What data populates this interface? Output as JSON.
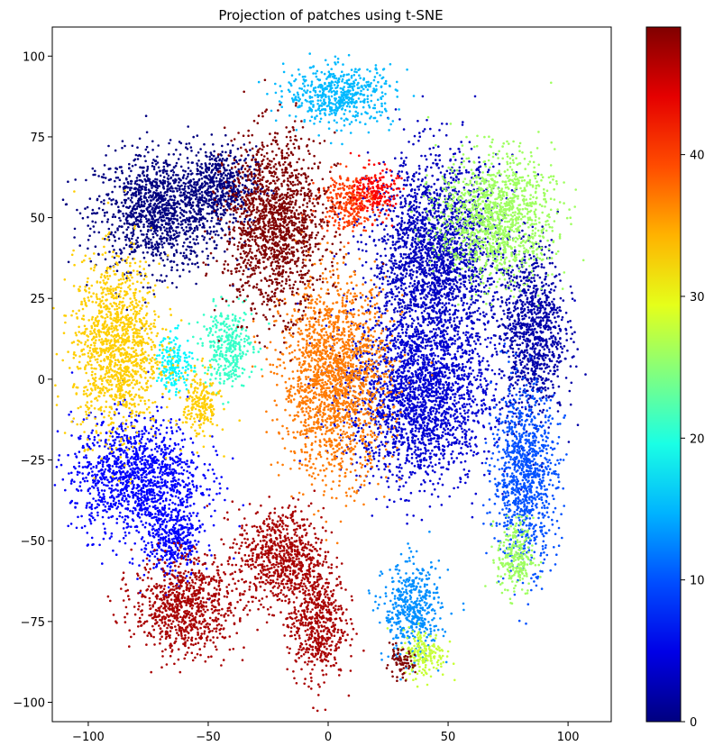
{
  "chart_data": {
    "type": "scatter",
    "title": "Projection of patches using t-SNE",
    "xlabel": "",
    "ylabel": "",
    "xlim": [
      -115,
      118
    ],
    "ylim": [
      -106,
      109
    ],
    "x_ticks": [
      -100,
      -50,
      0,
      50,
      100
    ],
    "y_ticks": [
      -100,
      -75,
      -50,
      -25,
      0,
      25,
      50,
      75,
      100
    ],
    "grid": false,
    "colormap": "jet",
    "color_range": [
      0,
      49
    ],
    "colorbar_ticks": [
      0,
      10,
      20,
      30,
      40
    ],
    "clusters": [
      {
        "label": 0,
        "x": -70,
        "y": 52,
        "sx": 18,
        "sy": 12
      },
      {
        "label": 0,
        "x": -45,
        "y": 60,
        "sx": 10,
        "sy": 8
      },
      {
        "label": 2,
        "x": 85,
        "y": 15,
        "sx": 9,
        "sy": 18
      },
      {
        "label": 3,
        "x": 45,
        "y": 38,
        "sx": 18,
        "sy": 20
      },
      {
        "label": 4,
        "x": 38,
        "y": -5,
        "sx": 20,
        "sy": 18
      },
      {
        "label": 6,
        "x": -80,
        "y": -30,
        "sx": 18,
        "sy": 12
      },
      {
        "label": 6,
        "x": -65,
        "y": -50,
        "sx": 8,
        "sy": 8
      },
      {
        "label": 10,
        "x": 82,
        "y": -30,
        "sx": 9,
        "sy": 18
      },
      {
        "label": 13,
        "x": 35,
        "y": -72,
        "sx": 8,
        "sy": 10
      },
      {
        "label": 18,
        "x": -64,
        "y": 5,
        "sx": 5,
        "sy": 6
      },
      {
        "label": 21,
        "x": -42,
        "y": 10,
        "sx": 7,
        "sy": 8
      },
      {
        "label": 26,
        "x": 70,
        "y": 50,
        "sx": 16,
        "sy": 13
      },
      {
        "label": 26,
        "x": 78,
        "y": -55,
        "sx": 5,
        "sy": 8
      },
      {
        "label": 28,
        "x": 40,
        "y": -85,
        "sx": 6,
        "sy": 5
      },
      {
        "label": 33,
        "x": -88,
        "y": 10,
        "sx": 12,
        "sy": 18
      },
      {
        "label": 33,
        "x": -53,
        "y": -8,
        "sx": 5,
        "sy": 7
      },
      {
        "label": 37,
        "x": 3,
        "y": 0,
        "sx": 15,
        "sy": 20
      },
      {
        "label": 40,
        "x": 8,
        "y": 55,
        "sx": 8,
        "sy": 6
      },
      {
        "label": 43,
        "x": 20,
        "y": 58,
        "sx": 6,
        "sy": 5
      },
      {
        "label": 47,
        "x": -60,
        "y": -70,
        "sx": 14,
        "sy": 10
      },
      {
        "label": 47,
        "x": -20,
        "y": -55,
        "sx": 12,
        "sy": 10
      },
      {
        "label": 47,
        "x": -5,
        "y": -75,
        "sx": 8,
        "sy": 12
      },
      {
        "label": 49,
        "x": -22,
        "y": 48,
        "sx": 14,
        "sy": 18
      },
      {
        "label": 49,
        "x": 30,
        "y": -88,
        "sx": 4,
        "sy": 3
      },
      {
        "label": 15,
        "x": 5,
        "y": 88,
        "sx": 15,
        "sy": 6
      }
    ]
  }
}
